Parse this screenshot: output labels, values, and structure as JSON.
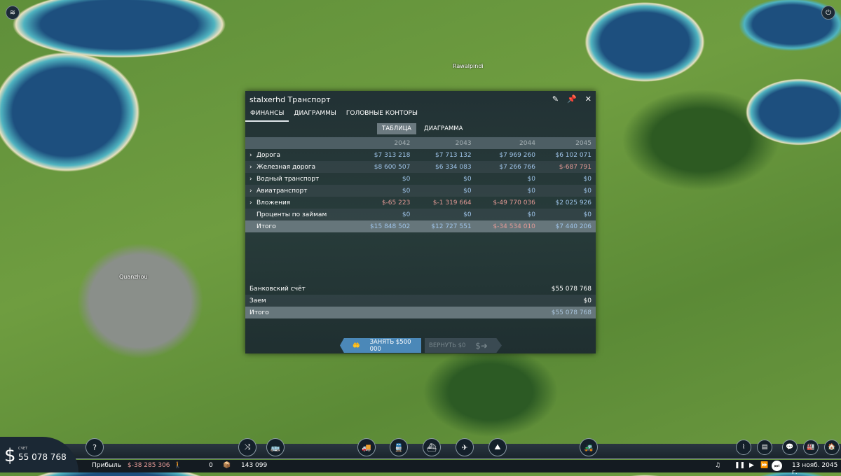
{
  "map": {
    "cities": [
      "Rawalpindi",
      "Quanzhou"
    ]
  },
  "window": {
    "title": "stalxerhd Транспорт",
    "icons": [
      "pencil-icon",
      "pin-icon",
      "close-icon"
    ],
    "tabs": [
      {
        "label": "ФИНАНСЫ",
        "active": true
      },
      {
        "label": "ДИАГРАММЫ"
      },
      {
        "label": "ГОЛОВНЫЕ КОНТОРЫ"
      }
    ],
    "subtabs": [
      {
        "label": "ТАБЛИЦА",
        "active": true
      },
      {
        "label": "ДИАГРАММА"
      }
    ],
    "years": [
      "2042",
      "2043",
      "2044",
      "2045"
    ],
    "rows": [
      {
        "label": "Дорога",
        "expand": true,
        "values": [
          "$7 313 218",
          "$7 713 132",
          "$7 969 260",
          "$6 102 071"
        ]
      },
      {
        "label": "Железная дорога",
        "expand": true,
        "values": [
          "$8 600 507",
          "$6 334 083",
          "$7 266 766",
          "$-687 791"
        ]
      },
      {
        "label": "Водный транспорт",
        "expand": true,
        "values": [
          "$0",
          "$0",
          "$0",
          "$0"
        ]
      },
      {
        "label": "Авиатранспорт",
        "expand": true,
        "values": [
          "$0",
          "$0",
          "$0",
          "$0"
        ]
      },
      {
        "label": "Вложения",
        "expand": true,
        "values": [
          "$-65 223",
          "$-1 319 664",
          "$-49 770 036",
          "$2 025 926"
        ]
      },
      {
        "label": "Проценты по займам",
        "expand": false,
        "values": [
          "$0",
          "$0",
          "$0",
          "$0"
        ]
      }
    ],
    "total": {
      "label": "Итого",
      "values": [
        "$15 848 502",
        "$12 727 551",
        "$-34 534 010",
        "$7 440 206"
      ]
    },
    "bank": {
      "account_label": "Банковский счёт",
      "account": "$55 078 768",
      "loan_label": "Заем",
      "loan": "$0",
      "total_label": "Итого",
      "total": "$55 078 768"
    },
    "borrow_label": "ЗАНЯТЬ $500 000",
    "repay_label": "ВЕРНУТЬ $0",
    "negative_color": "#e49a96",
    "positive_color": "#9ec3e8"
  },
  "bottom": {
    "account_label": "СЧЕТ",
    "account": "55 078 768",
    "profit_label": "Прибыль",
    "profit": "$-38 285 306",
    "passengers": "0",
    "cargo": "143 099",
    "date": "13 нояб. 2045 г."
  }
}
